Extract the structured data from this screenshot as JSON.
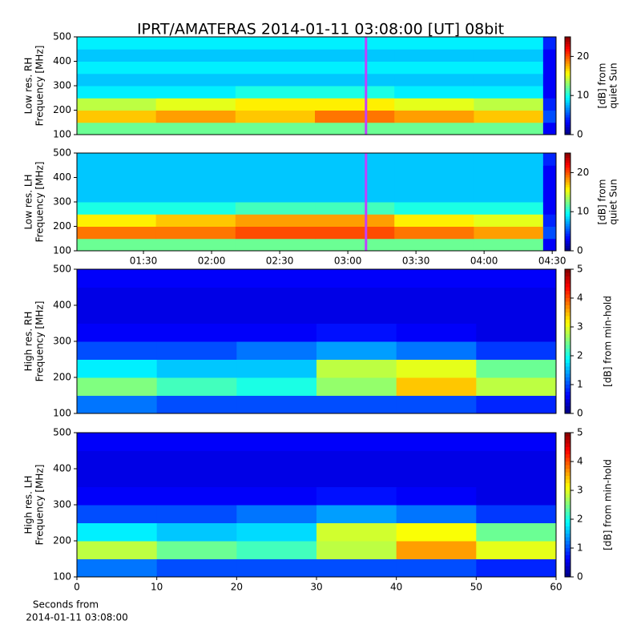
{
  "title": "IPRT/AMATERAS 2014-01-11 03:08:00 [UT]   08bit",
  "chart_data": [
    {
      "type": "heatmap",
      "colormap": "jet",
      "ylabel": [
        "Low res. RH",
        "Frequency [MHz]"
      ],
      "xlim": [
        60.7,
        271.7
      ],
      "ylim": [
        100,
        500
      ],
      "yticks": [
        100,
        200,
        300,
        400,
        500
      ],
      "x_bins": [
        60.7,
        95.5,
        130.5,
        165.5,
        200.5,
        235.5,
        266,
        271.7
      ],
      "y_bins": [
        100,
        150,
        200,
        250,
        300,
        350,
        400,
        450,
        500
      ],
      "z": [
        [
          12,
          12,
          12,
          12,
          12,
          12,
          3
        ],
        [
          17,
          18,
          17,
          19,
          18,
          17,
          5
        ],
        [
          14,
          15,
          16,
          16,
          15,
          14,
          4
        ],
        [
          9,
          9,
          10,
          10,
          9,
          9,
          3
        ],
        [
          8,
          8,
          8,
          8,
          8,
          8,
          3
        ],
        [
          9,
          9,
          9,
          9,
          9,
          9,
          3
        ],
        [
          8,
          8,
          8,
          8,
          8,
          8,
          3
        ],
        [
          9,
          9,
          9,
          9,
          9,
          9,
          4
        ]
      ],
      "clim": [
        0,
        25
      ],
      "cticks": [
        0,
        10,
        20
      ],
      "clabel": [
        "[dB] from",
        "quiet Sun"
      ],
      "marker_x": 188,
      "marker_color": "#c040ff"
    },
    {
      "type": "heatmap",
      "colormap": "jet",
      "ylabel": [
        "Low res. LH",
        "Frequency [MHz]"
      ],
      "xlim": [
        60.7,
        271.7
      ],
      "ylim": [
        100,
        500
      ],
      "yticks": [
        100,
        200,
        300,
        400,
        500
      ],
      "xticks": [
        {
          "value": 90,
          "label": "01:30"
        },
        {
          "value": 120,
          "label": "02:00"
        },
        {
          "value": 150,
          "label": "02:30"
        },
        {
          "value": 180,
          "label": "03:00"
        },
        {
          "value": 210,
          "label": "03:30"
        },
        {
          "value": 240,
          "label": "04:00"
        },
        {
          "value": 270,
          "label": "04:30"
        }
      ],
      "x_bins": [
        60.7,
        95.5,
        130.5,
        165.5,
        200.5,
        235.5,
        266,
        271.7
      ],
      "y_bins": [
        100,
        150,
        200,
        250,
        300,
        350,
        400,
        450,
        500
      ],
      "z": [
        [
          12,
          12,
          12,
          12,
          12,
          12,
          3
        ],
        [
          19,
          19,
          20,
          20,
          19,
          18,
          5
        ],
        [
          16,
          17,
          18,
          18,
          16,
          15,
          4
        ],
        [
          10,
          10,
          11,
          11,
          10,
          10,
          3
        ],
        [
          8,
          8,
          8,
          8,
          8,
          8,
          3
        ],
        [
          8,
          8,
          8,
          8,
          8,
          8,
          3
        ],
        [
          8,
          8,
          8,
          8,
          8,
          8,
          3
        ],
        [
          8,
          8,
          8,
          8,
          8,
          8,
          4
        ]
      ],
      "clim": [
        0,
        25
      ],
      "cticks": [
        0,
        10,
        20
      ],
      "clabel": [
        "[dB] from",
        "quiet Sun"
      ],
      "marker_x": 188,
      "marker_color": "#c040ff"
    },
    {
      "type": "heatmap",
      "colormap": "jet",
      "ylabel": [
        "High res. RH",
        "Frequency [MHz]"
      ],
      "xlim": [
        0,
        60
      ],
      "ylim": [
        100,
        500
      ],
      "yticks": [
        100,
        200,
        300,
        400,
        500
      ],
      "x_bins": [
        0,
        10,
        20,
        30,
        40,
        50,
        60
      ],
      "y_bins": [
        100,
        150,
        200,
        250,
        300,
        350,
        400,
        450,
        500
      ],
      "z": [
        [
          1.2,
          1,
          1,
          1,
          1,
          0.8
        ],
        [
          2.5,
          2.2,
          2,
          2.6,
          3.4,
          2.8
        ],
        [
          1.8,
          1.6,
          1.6,
          2.8,
          3,
          2.4
        ],
        [
          1,
          1,
          1.2,
          1.4,
          1.2,
          0.9
        ],
        [
          0.6,
          0.6,
          0.6,
          0.7,
          0.6,
          0.5
        ],
        [
          0.5,
          0.5,
          0.5,
          0.5,
          0.5,
          0.5
        ],
        [
          0.5,
          0.5,
          0.5,
          0.5,
          0.5,
          0.5
        ],
        [
          0.6,
          0.6,
          0.6,
          0.6,
          0.6,
          0.6
        ]
      ],
      "clim": [
        0,
        5
      ],
      "cticks": [
        0,
        1,
        2,
        3,
        4,
        5
      ],
      "clabel": [
        "[dB] from min-hold"
      ]
    },
    {
      "type": "heatmap",
      "colormap": "jet",
      "ylabel": [
        "High res. LH",
        "Frequency [MHz]"
      ],
      "xlim": [
        0,
        60
      ],
      "ylim": [
        100,
        500
      ],
      "yticks": [
        100,
        200,
        300,
        400,
        500
      ],
      "xticks": [
        0,
        10,
        20,
        30,
        40,
        50,
        60
      ],
      "xlabel": [
        "Seconds from",
        "2014-01-11 03:08:00"
      ],
      "x_bins": [
        0,
        10,
        20,
        30,
        40,
        50,
        60
      ],
      "y_bins": [
        100,
        150,
        200,
        250,
        300,
        350,
        400,
        450,
        500
      ],
      "z": [
        [
          1.2,
          1,
          1,
          1,
          1,
          0.8
        ],
        [
          2.8,
          2.4,
          2.2,
          2.8,
          3.6,
          3
        ],
        [
          1.8,
          1.6,
          1.7,
          2.9,
          3.1,
          2.4
        ],
        [
          1,
          1,
          1.2,
          1.4,
          1.2,
          0.9
        ],
        [
          0.6,
          0.6,
          0.6,
          0.7,
          0.6,
          0.5
        ],
        [
          0.5,
          0.5,
          0.5,
          0.5,
          0.5,
          0.5
        ],
        [
          0.5,
          0.5,
          0.5,
          0.5,
          0.5,
          0.5
        ],
        [
          0.6,
          0.6,
          0.6,
          0.6,
          0.6,
          0.6
        ]
      ],
      "clim": [
        0,
        5
      ],
      "cticks": [
        0,
        1,
        2,
        3,
        4,
        5
      ],
      "clabel": [
        "[dB] from min-hold"
      ]
    }
  ]
}
